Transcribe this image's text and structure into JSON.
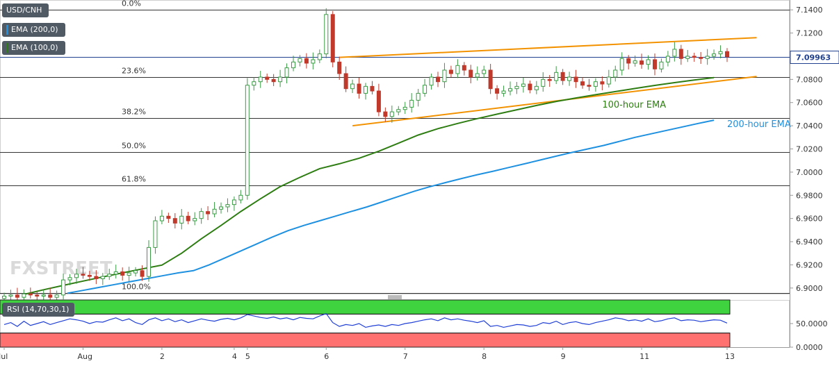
{
  "legend": {
    "symbol": "USD/CNH",
    "ema200": "EMA (200,0)",
    "ema100": "EMA (100,0)",
    "rsi": "RSI (14,70,30,1)"
  },
  "colors": {
    "candle_up": "#3a9b44",
    "candle_down": "#c0392b",
    "ema100": "#2e7d12",
    "ema200": "#1e90e0",
    "channel": "#f39200",
    "rsi_line": "#1f3fd6",
    "rsi_overbought": "#3fd43f",
    "rsi_oversold": "#ff7070",
    "price_box": "#1f3f8f"
  },
  "watermark": "FXSTREET",
  "chart_data": [
    {
      "type": "candlestick",
      "title": "USD/CNH",
      "y_ticks": [
        "7.1400",
        "7.1200",
        "7.1000",
        "7.0800",
        "7.0600",
        "7.0400",
        "7.0200",
        "7.0000",
        "6.9800",
        "6.9600",
        "6.9400",
        "6.9200",
        "6.9000"
      ],
      "ylim": [
        6.8945,
        7.1485
      ],
      "x_ticks": [
        "Jul",
        "Aug",
        "2",
        "4",
        "5",
        "6",
        "7",
        "8",
        "9",
        "11",
        "13"
      ],
      "x_tick_index": [
        0,
        12,
        24,
        35,
        37,
        49,
        61,
        73,
        85,
        97,
        110
      ],
      "last_price": "7.09963",
      "last_price_value": 7.09963,
      "fibonacci": [
        {
          "label": "0.0%",
          "value": 7.14
        },
        {
          "label": "23.6%",
          "value": 7.082
        },
        {
          "label": "38.2%",
          "value": 7.0465
        },
        {
          "label": "50.0%",
          "value": 7.0175
        },
        {
          "label": "61.8%",
          "value": 6.9885
        },
        {
          "label": "100.0%",
          "value": 6.8955
        }
      ],
      "annotations": [
        {
          "text": "100-hour EMA",
          "x": 91,
          "y": 7.0555,
          "color": "#2e7d12"
        },
        {
          "text": "200-hour EMA",
          "x": 110,
          "y": 7.039,
          "color": "#1e90e0"
        }
      ],
      "channel": {
        "upper": {
          "x1": 51,
          "y1": 7.099,
          "x2": 114.5,
          "y2": 7.116
        },
        "lower": {
          "x1": 53,
          "y1": 7.04,
          "x2": 114.5,
          "y2": 7.0825
        }
      },
      "closes": [
        6.893,
        6.894,
        6.892,
        6.895,
        6.894,
        6.893,
        6.894,
        6.892,
        6.894,
        6.907,
        6.909,
        6.912,
        6.911,
        6.91,
        6.908,
        6.91,
        6.912,
        6.914,
        6.911,
        6.913,
        6.915,
        6.91,
        6.935,
        6.958,
        6.962,
        6.96,
        6.956,
        6.962,
        6.958,
        6.96,
        6.966,
        6.964,
        6.968,
        6.97,
        6.972,
        6.976,
        6.98,
        7.075,
        7.078,
        7.082,
        7.08,
        7.078,
        7.082,
        7.09,
        7.095,
        7.098,
        7.094,
        7.097,
        7.102,
        7.136,
        7.095,
        7.085,
        7.072,
        7.076,
        7.068,
        7.074,
        7.07,
        7.052,
        7.048,
        7.052,
        7.054,
        7.056,
        7.062,
        7.068,
        7.075,
        7.082,
        7.078,
        7.088,
        7.085,
        7.092,
        7.088,
        7.082,
        7.085,
        7.088,
        7.072,
        7.068,
        7.07,
        7.072,
        7.074,
        7.076,
        7.071,
        7.074,
        7.08,
        7.079,
        7.086,
        7.079,
        7.082,
        7.078,
        7.075,
        7.074,
        7.078,
        7.076,
        7.082,
        7.088,
        7.098,
        7.094,
        7.096,
        7.093,
        7.097,
        7.089,
        7.095,
        7.1,
        7.106,
        7.098,
        7.1,
        7.099,
        7.098,
        7.1,
        7.102,
        7.104,
        7.0996
      ],
      "ema100": [
        6.8905,
        6.8945,
        6.8985,
        6.9023,
        6.906,
        6.9096,
        6.9131,
        6.9165,
        6.9198,
        6.93,
        6.9425,
        6.954,
        6.966,
        6.977,
        6.9875,
        6.9955,
        7.003,
        7.0072,
        7.012,
        7.018,
        7.025,
        7.032,
        7.0375,
        7.042,
        7.0462,
        7.05,
        7.0538,
        7.0575,
        7.061,
        7.064,
        7.0668,
        7.0695,
        7.0722,
        7.0748,
        7.0772,
        7.0795,
        7.0815
      ],
      "ema200": [
        6.8855,
        6.888,
        6.8905,
        6.893,
        6.8955,
        6.898,
        6.9005,
        6.903,
        6.9055,
        6.908,
        6.9105,
        6.913,
        6.915,
        6.92,
        6.926,
        6.932,
        6.938,
        6.944,
        6.9495,
        6.954,
        6.958,
        6.962,
        6.966,
        6.97,
        6.9745,
        6.979,
        6.9835,
        6.9875,
        6.991,
        6.9945,
        6.9978,
        7.0008,
        7.004,
        7.0072,
        7.0105,
        7.0138,
        7.017,
        7.02,
        7.023,
        7.0265,
        7.03,
        7.033,
        7.036,
        7.039,
        7.042,
        7.0448
      ]
    },
    {
      "type": "line",
      "title": "RSI (14,70,30,1)",
      "y_ticks": [
        "50.0000",
        "0.0000"
      ],
      "bands": {
        "overbought": 70,
        "oversold": 30
      },
      "ylim": [
        0,
        100
      ],
      "values": [
        48,
        52,
        44,
        55,
        46,
        50,
        54,
        48,
        52,
        56,
        60,
        58,
        55,
        50,
        54,
        53,
        58,
        62,
        56,
        60,
        52,
        48,
        58,
        62,
        56,
        60,
        54,
        58,
        52,
        56,
        60,
        57,
        55,
        59,
        61,
        58,
        62,
        69,
        66,
        63,
        61,
        64,
        60,
        62,
        58,
        63,
        61,
        60,
        66,
        71,
        52,
        44,
        48,
        46,
        50,
        42,
        45,
        47,
        44,
        48,
        46,
        50,
        52,
        55,
        58,
        60,
        56,
        62,
        58,
        60,
        57,
        55,
        52,
        56,
        44,
        46,
        42,
        45,
        48,
        47,
        44,
        46,
        52,
        50,
        55,
        48,
        52,
        54,
        50,
        48,
        52,
        55,
        58,
        62,
        60,
        56,
        58,
        55,
        60,
        54,
        56,
        60,
        62,
        56,
        58,
        57,
        54,
        56,
        58,
        57,
        51
      ]
    }
  ]
}
